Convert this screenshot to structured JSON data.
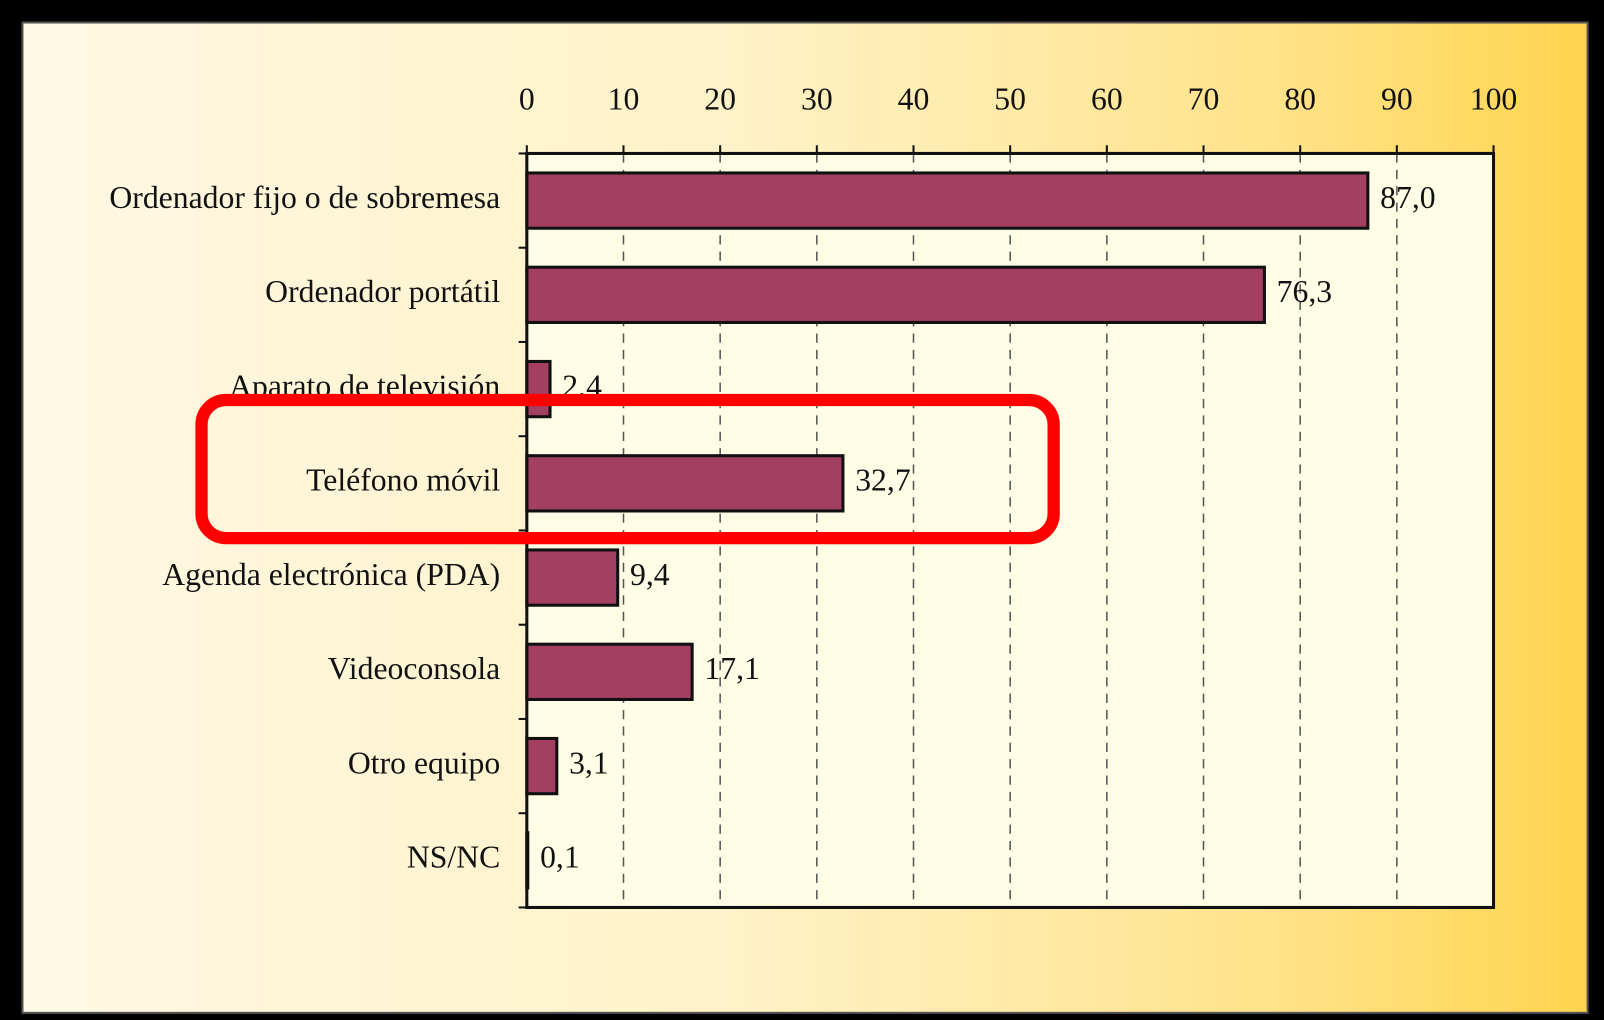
{
  "chart_data": {
    "type": "bar",
    "orientation": "horizontal",
    "categories": [
      "Ordenador fijo o de sobremesa",
      "Ordenador portátil",
      "Aparato de televisión",
      "Teléfono móvil",
      "Agenda electrónica (PDA)",
      "Videoconsola",
      "Otro equipo",
      "NS/NC"
    ],
    "values": [
      87.0,
      76.3,
      2.4,
      32.7,
      9.4,
      17.1,
      3.1,
      0.1
    ],
    "value_labels": [
      "87,0",
      "76,3",
      "2,4",
      "32,7",
      "9,4",
      "17,1",
      "3,1",
      "0,1"
    ],
    "color": "#a34062",
    "xlim": [
      0,
      100
    ],
    "xticks": [
      0,
      10,
      20,
      30,
      40,
      50,
      60,
      70,
      80,
      90,
      100
    ],
    "grid": true
  }
}
